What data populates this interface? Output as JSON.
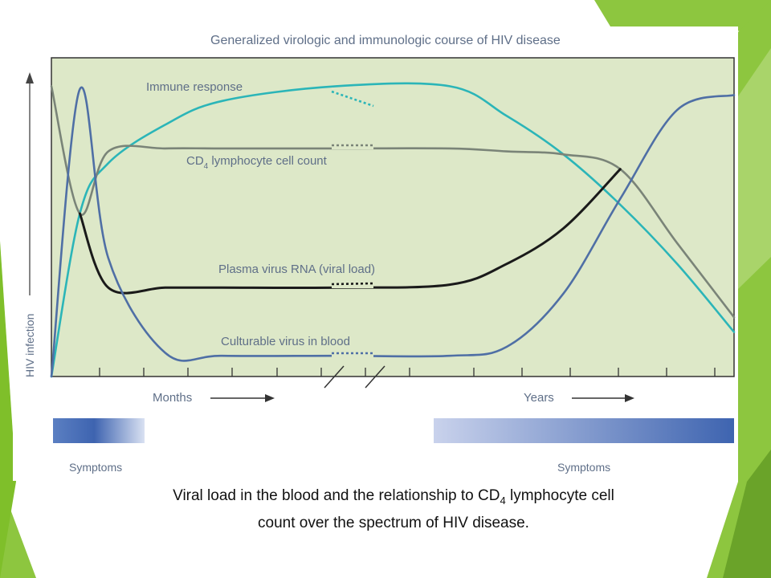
{
  "slide": {
    "caption": {
      "line1_before": "Viral load in the blood and the relationship to CD",
      "line1_sub": "4",
      "line1_after": " lymphocyte cell",
      "line2": "count over the spectrum of HIV disease."
    },
    "colors": {
      "chart_background": "#dde8c8",
      "accent_green": "#8dc63f",
      "accent_green_dark": "#6aa329"
    }
  },
  "chart_data": {
    "type": "line",
    "title": "Generalized virologic and immunologic course of HIV disease",
    "ylabel": "HIV infection",
    "x_periods": [
      {
        "label": "Months",
        "ticks": 8
      },
      {
        "label": "Years",
        "ticks": 6
      }
    ],
    "axis_break": "between months and years",
    "x": [
      0,
      1,
      2,
      4,
      6,
      10,
      14,
      16,
      18,
      20,
      22,
      24
    ],
    "ylim": [
      0,
      100
    ],
    "series": [
      {
        "name": "Immune response",
        "color": "#2bb5b8",
        "values": [
          0,
          55,
          72,
          85,
          93,
          98,
          98,
          88,
          75,
          58,
          38,
          15
        ]
      },
      {
        "name": "CD",
        "name_subscript": "4",
        "name_suffix": "lymphocyte cell count",
        "color": "#7a8478",
        "values": [
          98,
          55,
          76,
          77,
          77,
          77,
          77,
          76,
          75,
          70,
          45,
          20
        ]
      },
      {
        "name": "Plasma virus RNA (viral load)",
        "color": "#1a1a1a",
        "values": [
          null,
          55,
          30,
          30,
          30,
          30,
          31,
          38,
          50,
          70,
          null,
          null
        ]
      },
      {
        "name": "Culturable virus in blood",
        "color": "#4f6fa5",
        "values": [
          0,
          97,
          40,
          8,
          7,
          7,
          7,
          10,
          28,
          60,
          90,
          95
        ]
      }
    ],
    "symptom_bars": [
      {
        "label": "Symptoms",
        "period": "early months"
      },
      {
        "label": "Symptoms",
        "period": "late years"
      }
    ],
    "grid": false,
    "legend": "inline labels"
  }
}
